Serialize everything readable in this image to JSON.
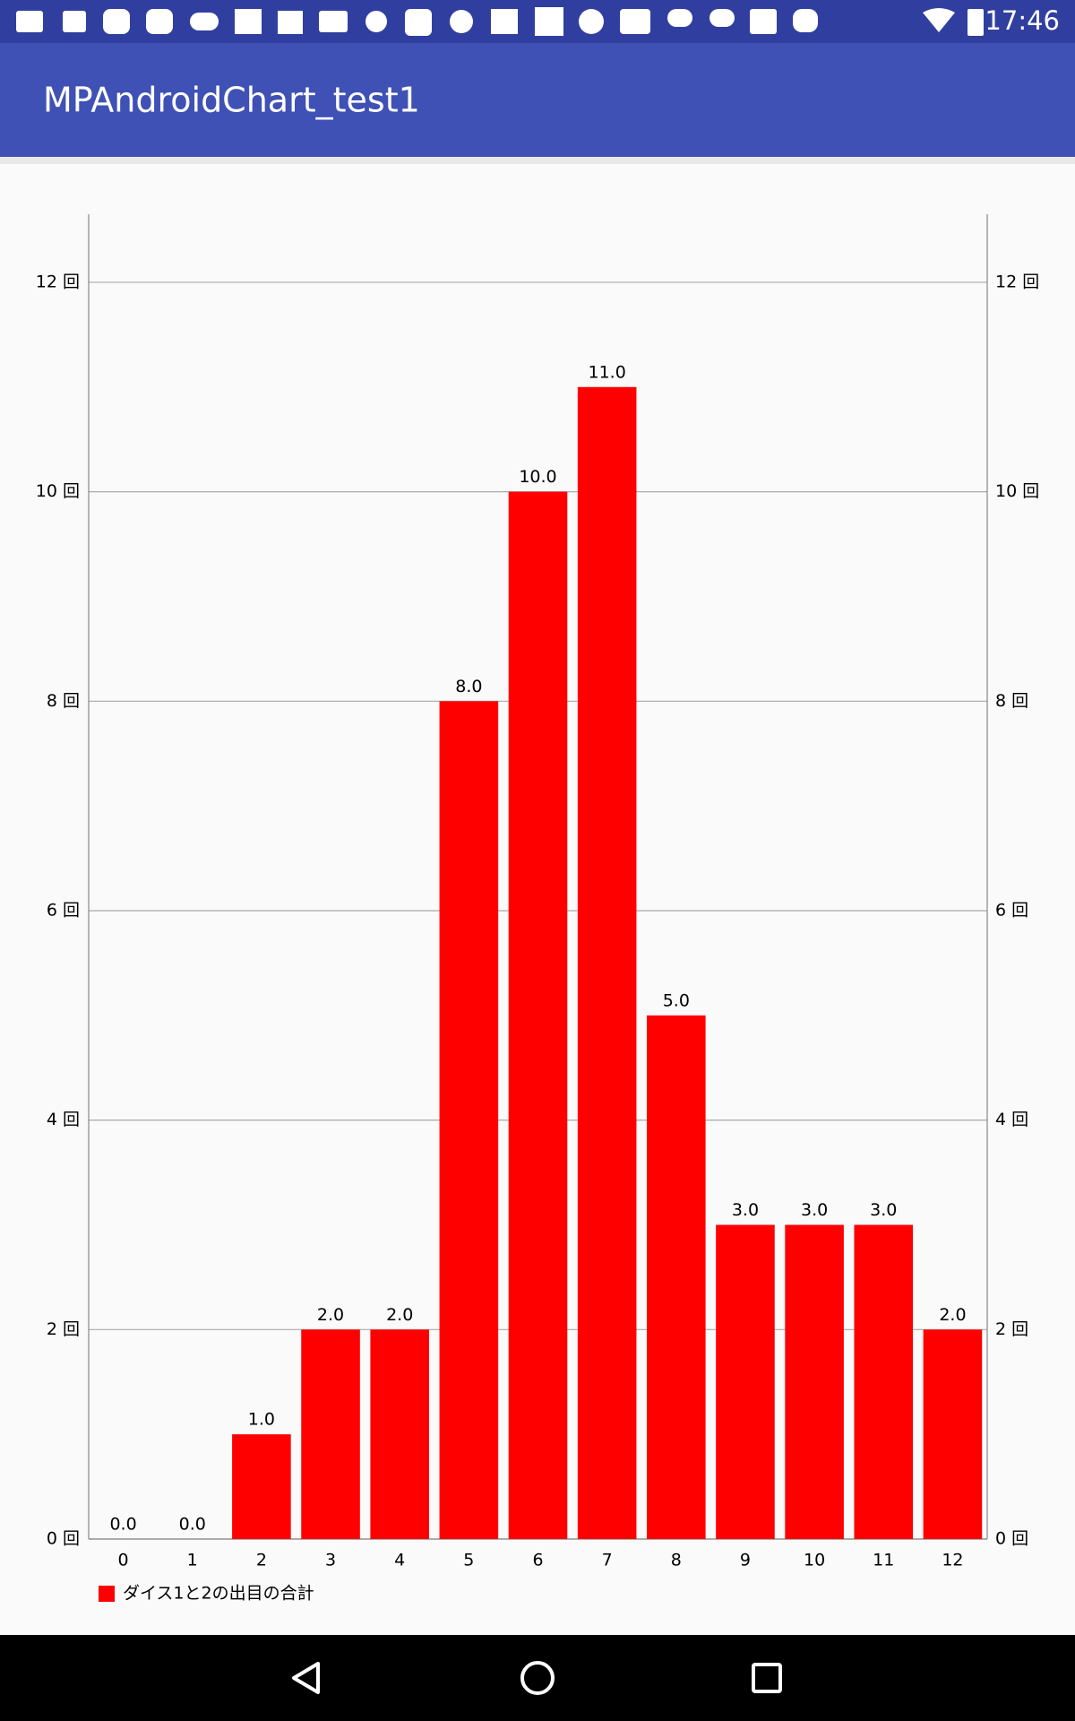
{
  "status_bar": {
    "time": "17:46"
  },
  "app_bar": {
    "title": "MPAndroidChart_test1"
  },
  "chart_data": {
    "type": "bar",
    "categories": [
      "0",
      "1",
      "2",
      "3",
      "4",
      "5",
      "6",
      "7",
      "8",
      "9",
      "10",
      "11",
      "12"
    ],
    "series": [
      {
        "name": "ダイス1と2の出目の合計",
        "color": "#ff0000",
        "values": [
          0,
          0,
          1,
          2,
          2,
          8,
          10,
          11,
          5,
          3,
          3,
          3,
          2
        ],
        "value_labels": [
          "0.0",
          "0.0",
          "1.0",
          "2.0",
          "2.0",
          "8.0",
          "10.0",
          "11.0",
          "5.0",
          "3.0",
          "3.0",
          "3.0",
          "2.0"
        ]
      }
    ],
    "ylim": [
      0,
      12.65
    ],
    "yticks": [
      {
        "value": 0,
        "label": "0 回"
      },
      {
        "value": 2,
        "label": "2 回"
      },
      {
        "value": 4,
        "label": "4 回"
      },
      {
        "value": 6,
        "label": "6 回"
      },
      {
        "value": 8,
        "label": "8 回"
      },
      {
        "value": 10,
        "label": "10 回"
      },
      {
        "value": 12,
        "label": "12 回"
      }
    ],
    "y2lim": [
      0,
      12.65
    ],
    "y2ticks": [
      {
        "value": 0,
        "label": "0 回"
      },
      {
        "value": 2,
        "label": "2 回"
      },
      {
        "value": 4,
        "label": "4 回"
      },
      {
        "value": 6,
        "label": "6 回"
      },
      {
        "value": 8,
        "label": "8 回"
      },
      {
        "value": 10,
        "label": "10 回"
      },
      {
        "value": 12,
        "label": "12 回"
      }
    ],
    "grid": true,
    "legend": "bottom-left"
  }
}
